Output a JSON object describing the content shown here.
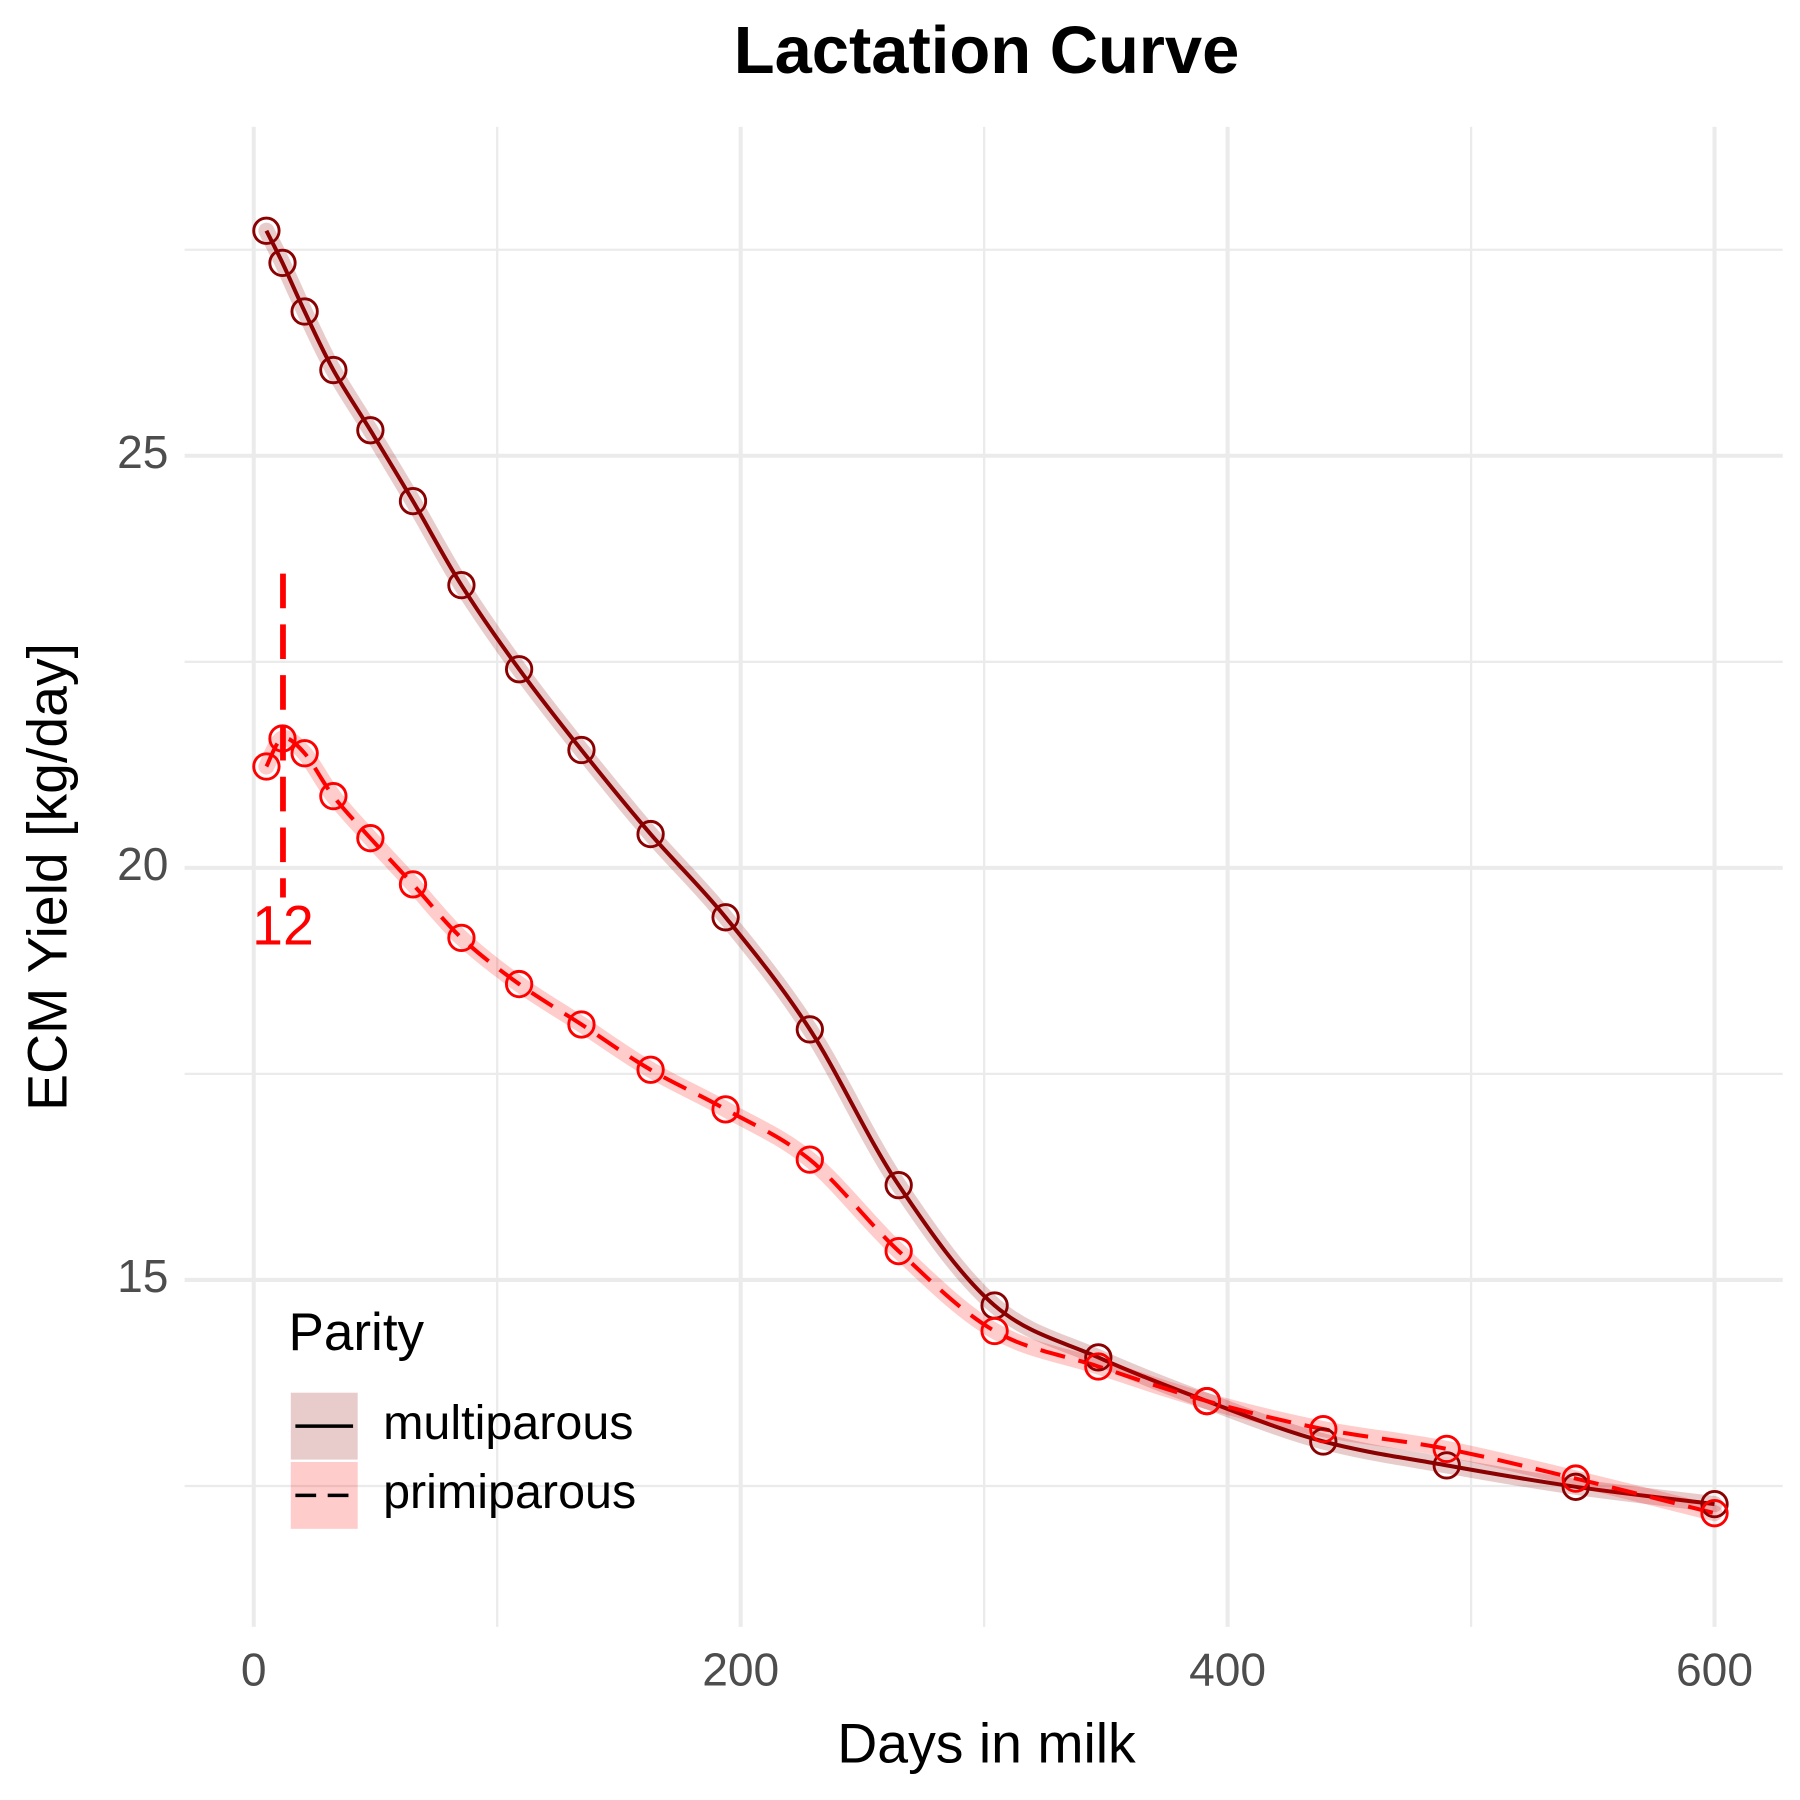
{
  "chart_data": {
    "type": "line",
    "title": "Lactation Curve",
    "x_label": "Days in milk",
    "y_label": "ECM Yield [kg/day]",
    "x": [
      5.2,
      11.8,
      20.9,
      32.7,
      47.9,
      65.4,
      85.3,
      109,
      134.6,
      163,
      193.8,
      228.4,
      264.9,
      304.3,
      346.9,
      391.5,
      439.3,
      490,
      543,
      600
    ],
    "series": [
      {
        "name": "multiparous",
        "color": "#8b0000",
        "linestyle": "solid",
        "values": [
          27.73,
          27.34,
          26.75,
          26.04,
          25.31,
          24.45,
          23.43,
          22.41,
          21.43,
          20.41,
          19.4,
          18.04,
          16.15,
          14.69,
          14.06,
          13.53,
          13.04,
          12.75,
          12.49,
          12.28
        ]
      },
      {
        "name": "primiparous",
        "color": "#ff0000",
        "linestyle": "dashed",
        "values": [
          21.23,
          21.57,
          21.39,
          20.87,
          20.36,
          19.8,
          19.15,
          18.59,
          18.1,
          17.55,
          17.07,
          16.46,
          15.35,
          14.38,
          13.95,
          13.53,
          13.19,
          12.95,
          12.59,
          12.17
        ]
      }
    ],
    "annotations": [
      {
        "x": 12,
        "y_from": 19.64,
        "y_to": 23.57,
        "color": "#ff0000"
      }
    ],
    "xlim": [
      -28.4,
      628
    ],
    "ylim": [
      10.79,
      28.99
    ],
    "xticks": [
      0,
      200,
      400,
      600
    ],
    "yticks": [
      15,
      20,
      25
    ],
    "x_minor_ticks": [
      100,
      300,
      500
    ],
    "y_minor_ticks": [
      12.5,
      17.5,
      22.5,
      27.5
    ],
    "grid": true,
    "legend_title": "Parity",
    "legend_position": "bottom-left"
  }
}
